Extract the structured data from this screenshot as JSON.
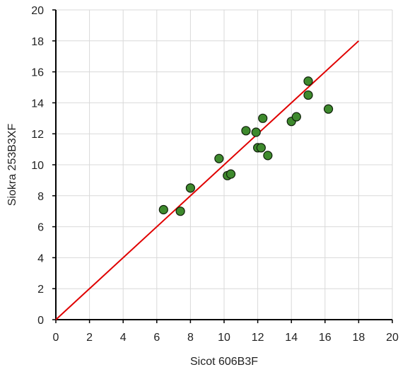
{
  "chart_data": {
    "type": "scatter",
    "xlabel": "Sicot 606B3F",
    "ylabel": "Siokra 253B3XF",
    "xlim": [
      0,
      20
    ],
    "ylim": [
      0,
      20
    ],
    "x_ticks": [
      0,
      2,
      4,
      6,
      8,
      10,
      12,
      14,
      16,
      18,
      20
    ],
    "y_ticks": [
      0,
      2,
      4,
      6,
      8,
      10,
      12,
      14,
      16,
      18,
      20
    ],
    "grid": true,
    "legend": "none",
    "colors": {
      "marker_fill": "#3e8a2d",
      "marker_stroke": "#0f1f0a",
      "line": "#e00000",
      "grid": "#d9d9d9",
      "axis": "#000000"
    },
    "series": [
      {
        "type": "scatter",
        "points": [
          {
            "x": 6.4,
            "y": 7.1
          },
          {
            "x": 7.4,
            "y": 7.0
          },
          {
            "x": 8.0,
            "y": 8.5
          },
          {
            "x": 9.7,
            "y": 10.4
          },
          {
            "x": 10.2,
            "y": 9.3
          },
          {
            "x": 10.4,
            "y": 9.4
          },
          {
            "x": 11.3,
            "y": 12.2
          },
          {
            "x": 11.9,
            "y": 12.1
          },
          {
            "x": 12.0,
            "y": 11.1
          },
          {
            "x": 12.2,
            "y": 11.1
          },
          {
            "x": 12.3,
            "y": 13.0
          },
          {
            "x": 12.6,
            "y": 10.6
          },
          {
            "x": 14.0,
            "y": 12.8
          },
          {
            "x": 14.3,
            "y": 13.1
          },
          {
            "x": 15.0,
            "y": 15.4
          },
          {
            "x": 15.0,
            "y": 14.5
          },
          {
            "x": 16.2,
            "y": 13.6
          }
        ]
      },
      {
        "type": "line",
        "points": [
          {
            "x": 0,
            "y": 0
          },
          {
            "x": 18,
            "y": 18
          }
        ]
      }
    ]
  }
}
